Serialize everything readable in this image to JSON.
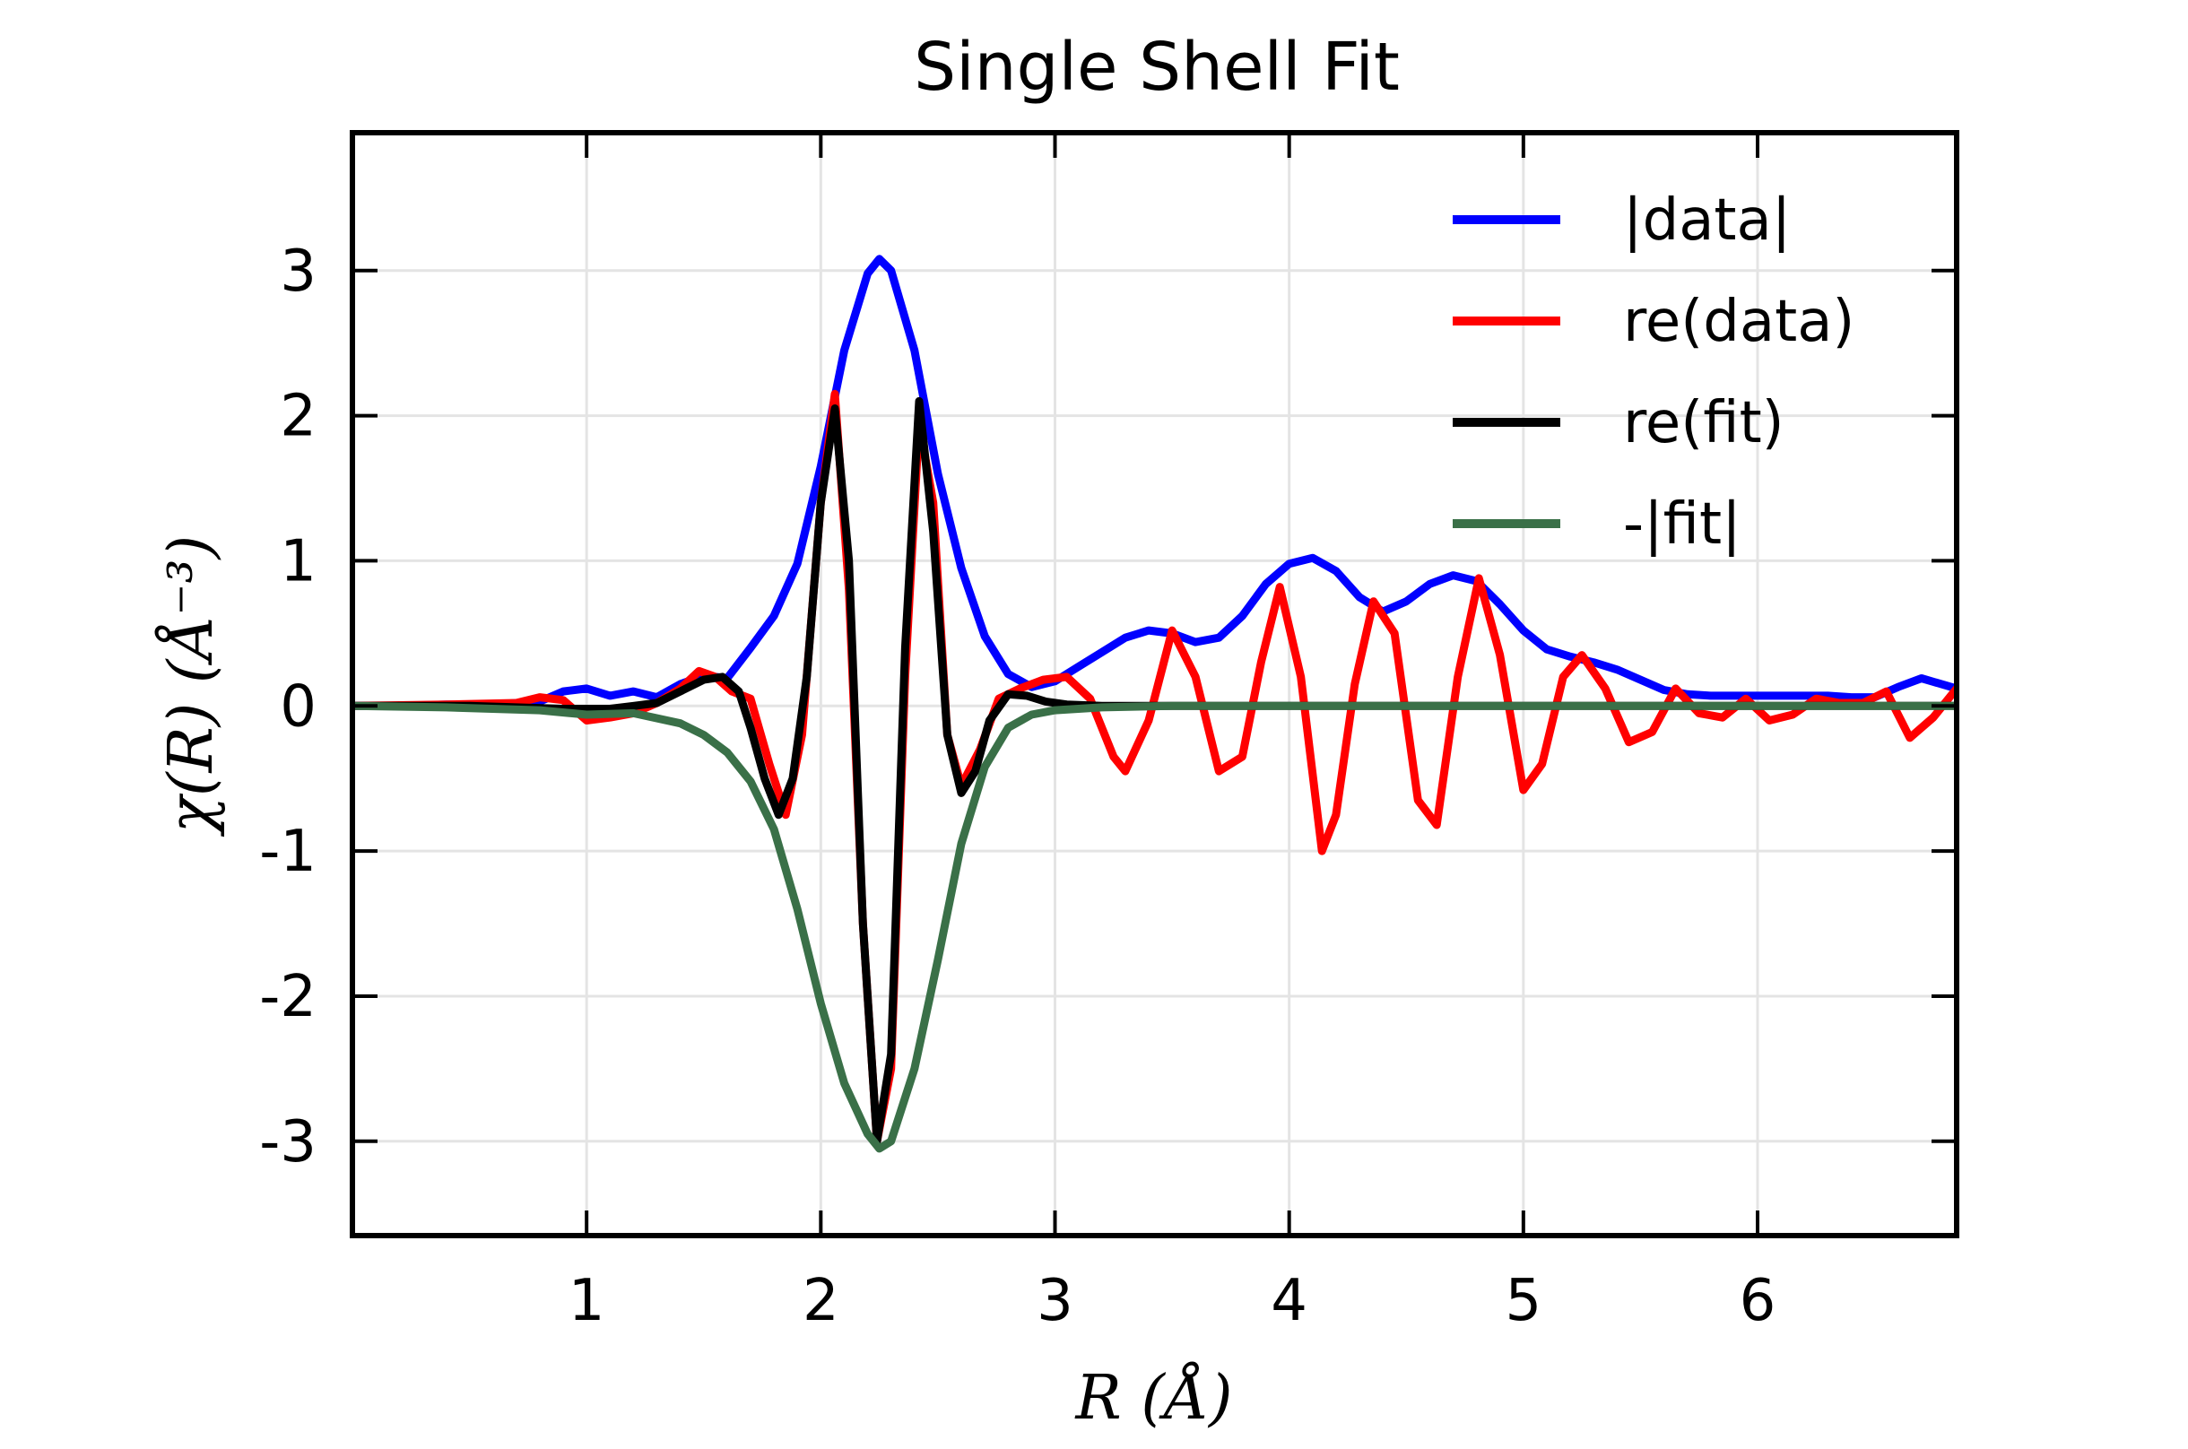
{
  "chart_data": {
    "type": "line",
    "title": "Single Shell Fit",
    "xlabel": "R (Å)",
    "ylabel": "χ(R) (Å⁻³)",
    "xlim": [
      0.0,
      6.85
    ],
    "ylim": [
      -3.65,
      3.95
    ],
    "xticks": [
      1,
      2,
      3,
      4,
      5,
      6
    ],
    "xtick_labels": [
      "1",
      "2",
      "3",
      "4",
      "5",
      "6"
    ],
    "yticks": [
      -3,
      -2,
      -1,
      0,
      1,
      2,
      3
    ],
    "ytick_labels": [
      "-3",
      "-2",
      "-1",
      "0",
      "1",
      "2",
      "3"
    ],
    "grid": true,
    "legend_position": "top-right",
    "series": [
      {
        "name": "|data|",
        "color": "#0000ff",
        "x": [
          0.0,
          0.2,
          0.4,
          0.6,
          0.8,
          0.9,
          1.0,
          1.1,
          1.2,
          1.3,
          1.4,
          1.5,
          1.6,
          1.7,
          1.8,
          1.9,
          2.0,
          2.1,
          2.2,
          2.25,
          2.3,
          2.4,
          2.5,
          2.6,
          2.7,
          2.8,
          2.9,
          3.0,
          3.1,
          3.2,
          3.3,
          3.4,
          3.5,
          3.6,
          3.7,
          3.8,
          3.9,
          4.0,
          4.1,
          4.2,
          4.3,
          4.4,
          4.5,
          4.6,
          4.7,
          4.8,
          4.9,
          5.0,
          5.1,
          5.2,
          5.3,
          5.4,
          5.5,
          5.6,
          5.7,
          5.8,
          5.9,
          6.0,
          6.1,
          6.2,
          6.3,
          6.4,
          6.5,
          6.6,
          6.7,
          6.85
        ],
        "y": [
          0.0,
          0.0,
          0.01,
          0.01,
          0.03,
          0.1,
          0.12,
          0.07,
          0.1,
          0.06,
          0.15,
          0.21,
          0.19,
          0.4,
          0.62,
          0.98,
          1.65,
          2.45,
          2.98,
          3.08,
          3.0,
          2.45,
          1.6,
          0.95,
          0.48,
          0.22,
          0.13,
          0.17,
          0.27,
          0.37,
          0.47,
          0.52,
          0.5,
          0.44,
          0.47,
          0.62,
          0.84,
          0.98,
          1.02,
          0.93,
          0.75,
          0.65,
          0.72,
          0.84,
          0.9,
          0.86,
          0.7,
          0.52,
          0.39,
          0.34,
          0.3,
          0.25,
          0.18,
          0.11,
          0.08,
          0.07,
          0.07,
          0.07,
          0.07,
          0.07,
          0.07,
          0.06,
          0.06,
          0.13,
          0.19,
          0.12
        ]
      },
      {
        "name": "re(data)",
        "color": "#ff0000",
        "x": [
          0.0,
          0.4,
          0.7,
          0.8,
          0.9,
          1.0,
          1.1,
          1.2,
          1.3,
          1.4,
          1.48,
          1.55,
          1.62,
          1.7,
          1.78,
          1.85,
          1.92,
          2.0,
          2.06,
          2.12,
          2.18,
          2.24,
          2.3,
          2.36,
          2.42,
          2.48,
          2.54,
          2.6,
          2.68,
          2.76,
          2.85,
          2.95,
          3.05,
          3.15,
          3.25,
          3.3,
          3.4,
          3.5,
          3.6,
          3.7,
          3.8,
          3.88,
          3.96,
          4.05,
          4.14,
          4.2,
          4.28,
          4.36,
          4.45,
          4.55,
          4.63,
          4.72,
          4.81,
          4.9,
          5.0,
          5.08,
          5.17,
          5.25,
          5.35,
          5.45,
          5.55,
          5.65,
          5.75,
          5.85,
          5.95,
          6.05,
          6.15,
          6.25,
          6.35,
          6.45,
          6.55,
          6.65,
          6.75,
          6.85
        ],
        "y": [
          0.0,
          0.01,
          0.02,
          0.06,
          0.04,
          -0.1,
          -0.08,
          -0.05,
          0.02,
          0.12,
          0.24,
          0.2,
          0.1,
          0.05,
          -0.4,
          -0.75,
          -0.2,
          1.4,
          2.15,
          0.8,
          -1.5,
          -3.0,
          -2.5,
          0.2,
          1.95,
          1.4,
          -0.2,
          -0.55,
          -0.3,
          0.05,
          0.12,
          0.18,
          0.2,
          0.05,
          -0.35,
          -0.45,
          -0.1,
          0.52,
          0.2,
          -0.45,
          -0.35,
          0.3,
          0.82,
          0.2,
          -1.0,
          -0.75,
          0.15,
          0.72,
          0.5,
          -0.65,
          -0.82,
          0.2,
          0.88,
          0.35,
          -0.58,
          -0.4,
          0.2,
          0.35,
          0.12,
          -0.25,
          -0.18,
          0.12,
          -0.05,
          -0.08,
          0.05,
          -0.1,
          -0.06,
          0.05,
          0.02,
          0.02,
          0.1,
          -0.22,
          -0.08,
          0.12
        ]
      },
      {
        "name": "re(fit)",
        "color": "#000000",
        "x": [
          0.0,
          0.5,
          0.9,
          1.1,
          1.2,
          1.3,
          1.4,
          1.5,
          1.58,
          1.65,
          1.7,
          1.76,
          1.82,
          1.88,
          1.94,
          2.0,
          2.06,
          2.12,
          2.18,
          2.24,
          2.3,
          2.36,
          2.42,
          2.48,
          2.54,
          2.6,
          2.66,
          2.72,
          2.8,
          2.88,
          2.96,
          3.05,
          3.2,
          3.5,
          4.0,
          5.0,
          6.0,
          6.85
        ],
        "y": [
          0.0,
          0.0,
          -0.02,
          -0.02,
          0.0,
          0.02,
          0.1,
          0.18,
          0.2,
          0.1,
          -0.15,
          -0.5,
          -0.75,
          -0.5,
          0.2,
          1.4,
          2.05,
          1.0,
          -1.5,
          -3.0,
          -2.4,
          0.4,
          2.1,
          1.2,
          -0.2,
          -0.6,
          -0.45,
          -0.1,
          0.08,
          0.07,
          0.03,
          0.01,
          0.0,
          0.0,
          0.0,
          0.0,
          0.0,
          0.0
        ]
      },
      {
        "name": "-|fit|",
        "color": "#3a7048",
        "x": [
          0.0,
          0.4,
          0.8,
          1.0,
          1.2,
          1.4,
          1.5,
          1.6,
          1.7,
          1.8,
          1.9,
          2.0,
          2.1,
          2.2,
          2.25,
          2.3,
          2.4,
          2.5,
          2.6,
          2.7,
          2.8,
          2.9,
          3.0,
          3.2,
          3.5,
          4.0,
          5.0,
          6.0,
          6.85
        ],
        "y": [
          0.0,
          -0.01,
          -0.03,
          -0.06,
          -0.05,
          -0.12,
          -0.2,
          -0.32,
          -0.52,
          -0.85,
          -1.4,
          -2.05,
          -2.6,
          -2.95,
          -3.05,
          -3.0,
          -2.5,
          -1.75,
          -0.95,
          -0.42,
          -0.15,
          -0.06,
          -0.03,
          -0.01,
          0.0,
          0.0,
          0.0,
          0.0,
          0.0
        ]
      }
    ]
  }
}
